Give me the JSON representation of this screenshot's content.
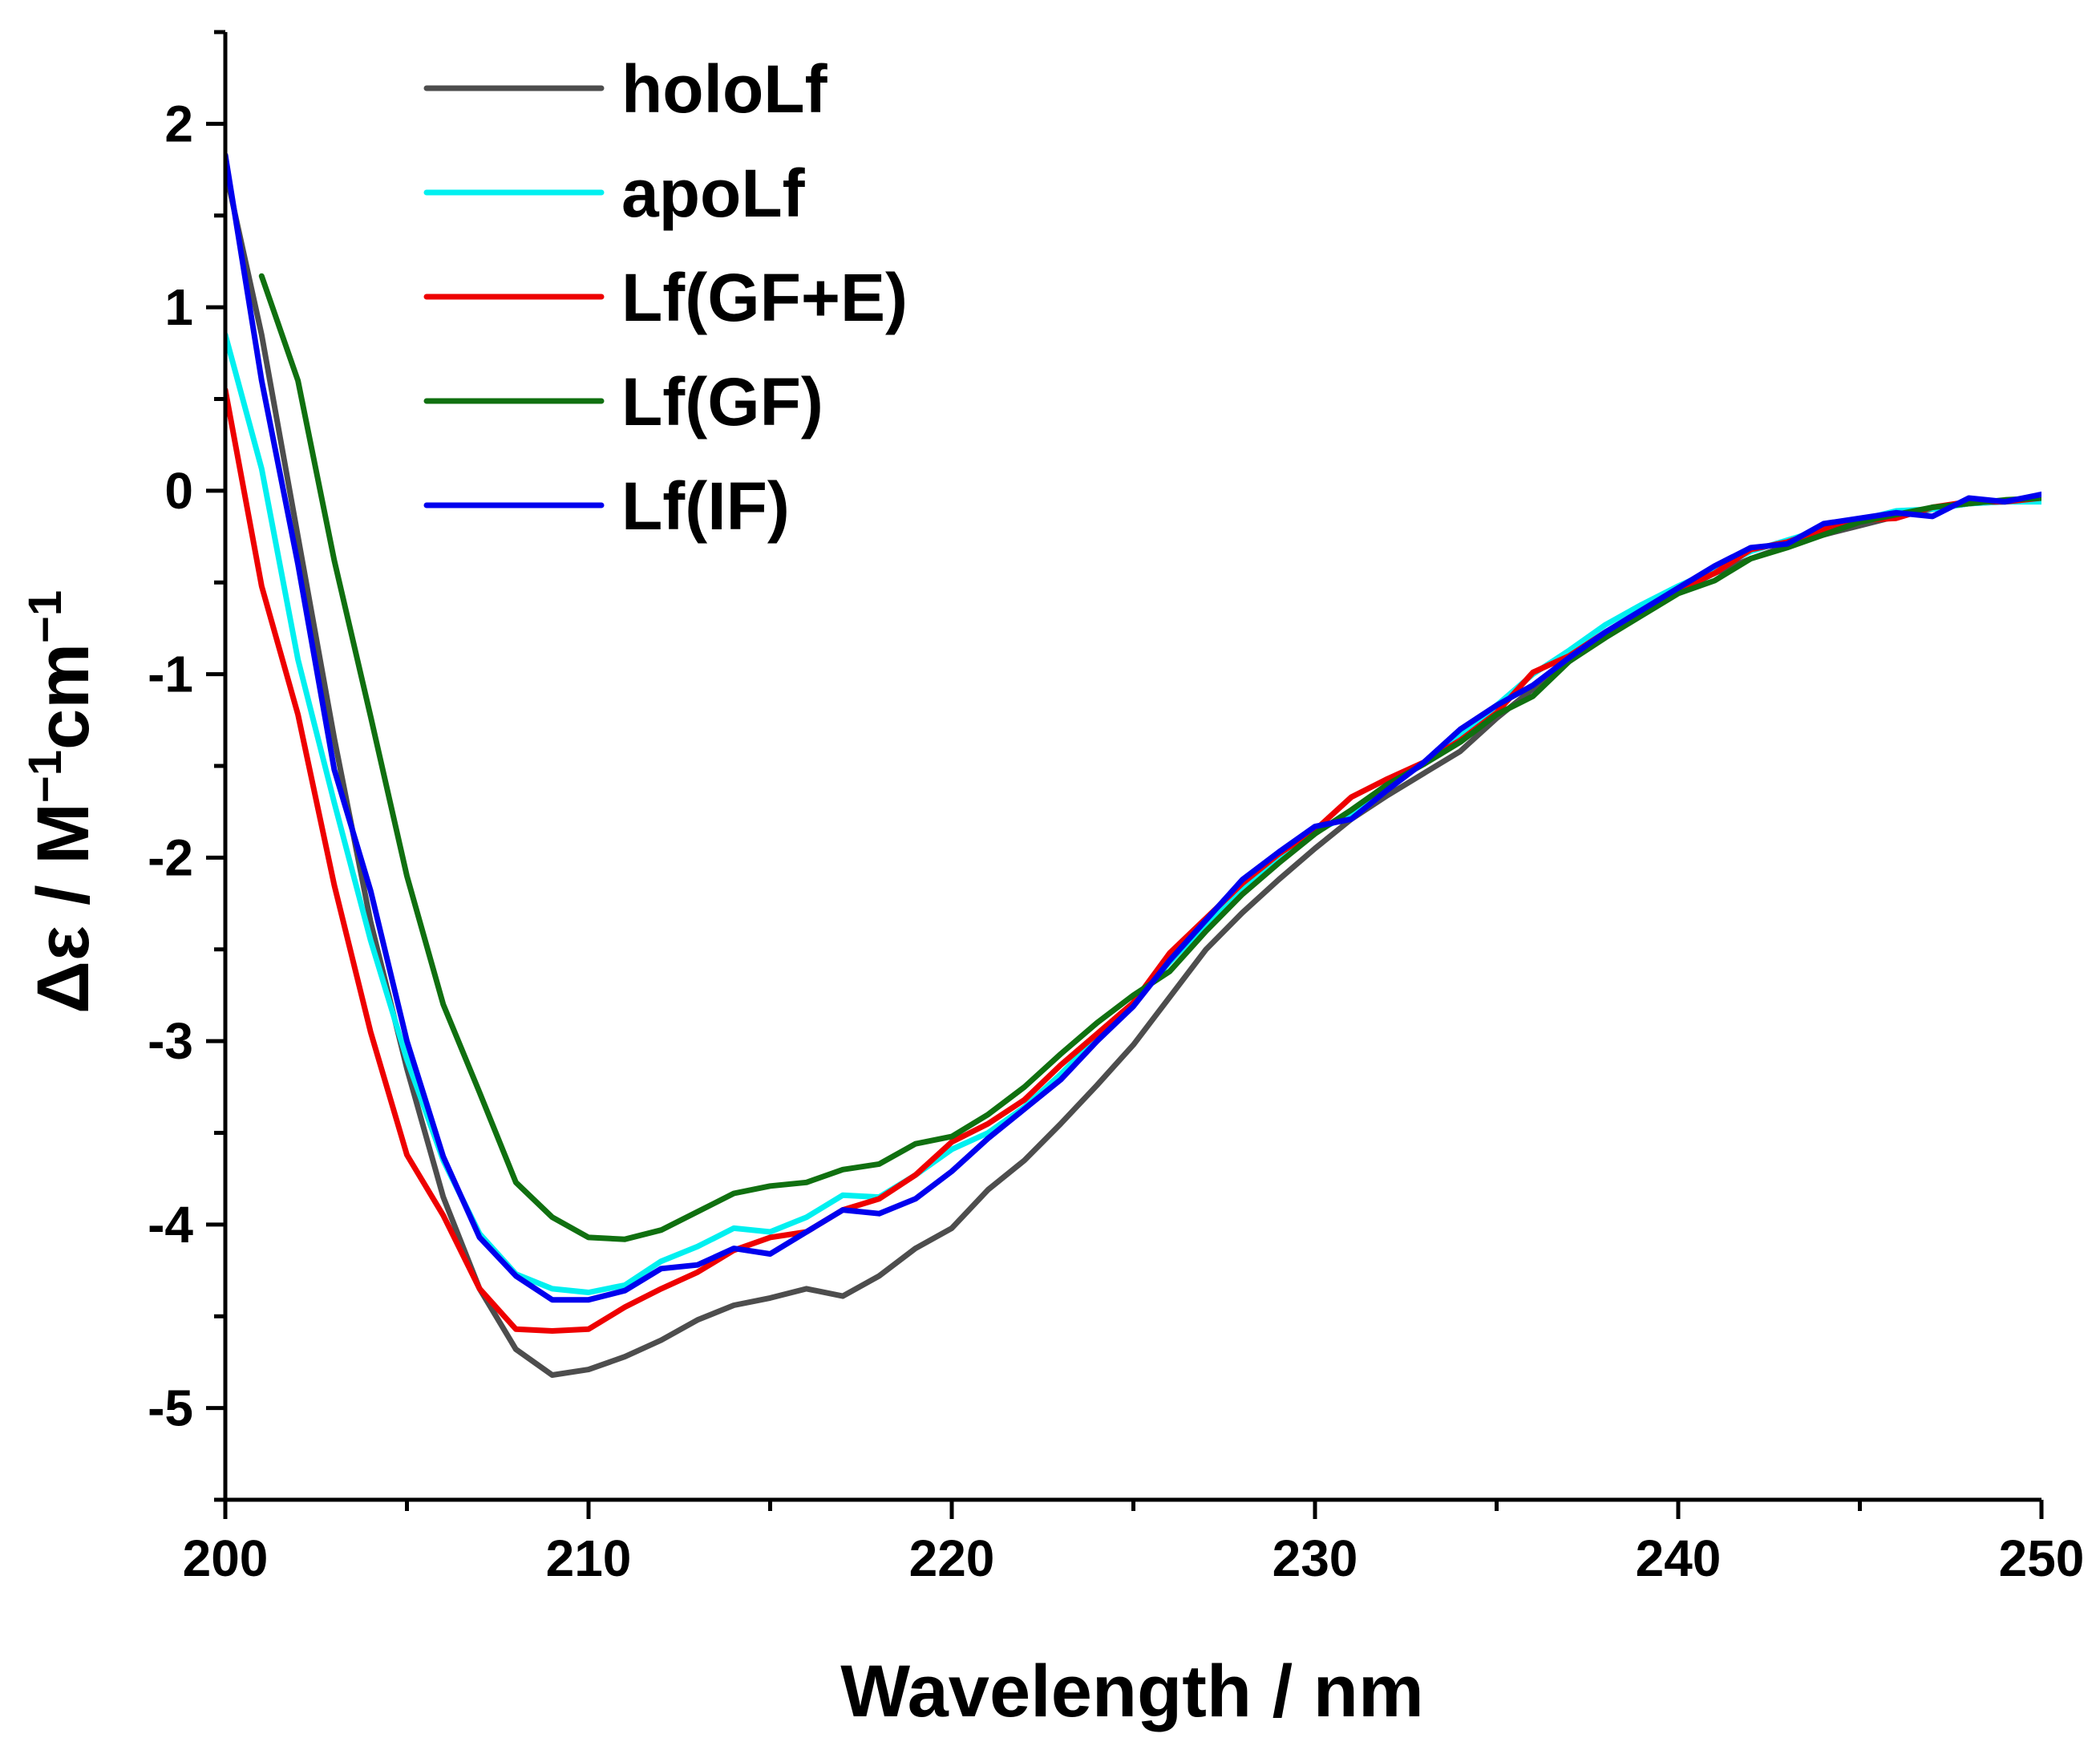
{
  "chart_data": {
    "type": "line",
    "title": "",
    "xlabel": "Wavelength / nm",
    "ylabel_prefix": "Δε / M",
    "ylabel_exp1": "−1",
    "ylabel_mid": "cm",
    "ylabel_exp2": "−1",
    "xlim": [
      200,
      250
    ],
    "ylim": [
      -5.5,
      2.5
    ],
    "xticks": [
      200,
      210,
      220,
      230,
      240,
      250
    ],
    "yticks": [
      -5,
      -4,
      -3,
      -2,
      -1,
      0,
      1,
      2
    ],
    "xtick_labels": [
      "200",
      "210",
      "220",
      "230",
      "240",
      "250"
    ],
    "ytick_labels": [
      "-5",
      "-4",
      "-3",
      "-2",
      "-1",
      "0",
      "1",
      "2"
    ],
    "legend_position": "top-left",
    "series": [
      {
        "name": "holoLf",
        "color": "#4d4d4d",
        "x": [
          200,
          201,
          202,
          203,
          204,
          205,
          206,
          207,
          208,
          209,
          210,
          211,
          212,
          213,
          214,
          215,
          216,
          217,
          218,
          219,
          220,
          221,
          222,
          223,
          224,
          225,
          226,
          227,
          228,
          229,
          230,
          231,
          232,
          233,
          234,
          235,
          236,
          237,
          238,
          239,
          240,
          241,
          242,
          243,
          244,
          245,
          246,
          247,
          248,
          249,
          250
        ],
        "y": [
          1.75,
          0.85,
          -0.25,
          -1.35,
          -2.35,
          -3.15,
          -3.85,
          -4.35,
          -4.68,
          -4.82,
          -4.79,
          -4.72,
          -4.63,
          -4.52,
          -4.44,
          -4.4,
          -4.35,
          -4.39,
          -4.28,
          -4.13,
          -4.02,
          -3.81,
          -3.65,
          -3.45,
          -3.24,
          -3.02,
          -2.76,
          -2.5,
          -2.3,
          -2.12,
          -1.95,
          -1.79,
          -1.66,
          -1.54,
          -1.42,
          -1.24,
          -1.08,
          -0.93,
          -0.79,
          -0.66,
          -0.55,
          -0.45,
          -0.37,
          -0.3,
          -0.24,
          -0.19,
          -0.14,
          -0.1,
          -0.07,
          -0.06,
          -0.04
        ]
      },
      {
        "name": "apoLf",
        "color": "#00f0f0",
        "x": [
          200,
          201,
          202,
          203,
          204,
          205,
          206,
          207,
          208,
          209,
          210,
          211,
          212,
          213,
          214,
          215,
          216,
          217,
          218,
          219,
          220,
          221,
          222,
          223,
          224,
          225,
          226,
          227,
          228,
          229,
          230,
          231,
          232,
          233,
          234,
          235,
          236,
          237,
          238,
          239,
          240,
          241,
          242,
          243,
          244,
          245,
          246,
          247,
          248,
          249,
          250
        ],
        "y": [
          0.85,
          0.12,
          -0.92,
          -1.7,
          -2.45,
          -3.1,
          -3.65,
          -4.05,
          -4.27,
          -4.35,
          -4.37,
          -4.33,
          -4.2,
          -4.12,
          -4.02,
          -4.04,
          -3.96,
          -3.84,
          -3.85,
          -3.73,
          -3.59,
          -3.5,
          -3.36,
          -3.18,
          -2.98,
          -2.79,
          -2.57,
          -2.36,
          -2.17,
          -2.0,
          -1.86,
          -1.76,
          -1.62,
          -1.48,
          -1.33,
          -1.17,
          -1.0,
          -0.87,
          -0.73,
          -0.62,
          -0.52,
          -0.43,
          -0.33,
          -0.27,
          -0.21,
          -0.16,
          -0.11,
          -0.1,
          -0.07,
          -0.06,
          -0.06
        ]
      },
      {
        "name": "Lf(GF+E)",
        "color": "#ee0000",
        "x": [
          200,
          201,
          202,
          203,
          204,
          205,
          206,
          207,
          208,
          209,
          210,
          211,
          212,
          213,
          214,
          215,
          216,
          217,
          218,
          219,
          220,
          221,
          222,
          223,
          224,
          225,
          226,
          227,
          228,
          229,
          230,
          231,
          232,
          233,
          234,
          235,
          236,
          237,
          238,
          239,
          240,
          241,
          242,
          243,
          244,
          245,
          246,
          247,
          248,
          249,
          250
        ],
        "y": [
          0.55,
          -0.52,
          -1.22,
          -2.15,
          -2.95,
          -3.62,
          -3.95,
          -4.35,
          -4.57,
          -4.58,
          -4.57,
          -4.45,
          -4.35,
          -4.26,
          -4.14,
          -4.07,
          -4.04,
          -3.92,
          -3.86,
          -3.73,
          -3.55,
          -3.45,
          -3.32,
          -3.13,
          -2.96,
          -2.79,
          -2.52,
          -2.33,
          -2.14,
          -1.98,
          -1.85,
          -1.67,
          -1.57,
          -1.48,
          -1.36,
          -1.21,
          -0.99,
          -0.9,
          -0.77,
          -0.66,
          -0.54,
          -0.45,
          -0.32,
          -0.28,
          -0.21,
          -0.16,
          -0.15,
          -0.09,
          -0.06,
          -0.06,
          -0.04
        ]
      },
      {
        "name": "Lf(GF)",
        "color": "#107010",
        "x": [
          201,
          202,
          203,
          204,
          205,
          206,
          207,
          208,
          209,
          210,
          211,
          212,
          213,
          214,
          215,
          216,
          217,
          218,
          219,
          220,
          221,
          222,
          223,
          224,
          225,
          226,
          227,
          228,
          229,
          230,
          231,
          232,
          233,
          234,
          235,
          236,
          237,
          238,
          239,
          240,
          241,
          242,
          243,
          244,
          245,
          246,
          247,
          248,
          249,
          250
        ],
        "y": [
          1.17,
          0.6,
          -0.38,
          -1.23,
          -2.1,
          -2.8,
          -3.28,
          -3.77,
          -3.96,
          -4.07,
          -4.08,
          -4.03,
          -3.93,
          -3.83,
          -3.79,
          -3.77,
          -3.7,
          -3.67,
          -3.56,
          -3.52,
          -3.4,
          -3.25,
          -3.07,
          -2.9,
          -2.75,
          -2.62,
          -2.4,
          -2.2,
          -2.03,
          -1.87,
          -1.74,
          -1.6,
          -1.49,
          -1.37,
          -1.22,
          -1.12,
          -0.93,
          -0.8,
          -0.68,
          -0.56,
          -0.49,
          -0.37,
          -0.31,
          -0.24,
          -0.17,
          -0.13,
          -0.09,
          -0.07,
          -0.05,
          -0.04
        ]
      },
      {
        "name": "Lf(IF)",
        "color": "#0000ee",
        "x": [
          200,
          201,
          202,
          203,
          204,
          205,
          206,
          207,
          208,
          209,
          210,
          211,
          212,
          213,
          214,
          215,
          216,
          217,
          218,
          219,
          220,
          221,
          222,
          223,
          224,
          225,
          226,
          227,
          228,
          229,
          230,
          231,
          232,
          233,
          234,
          235,
          236,
          237,
          238,
          239,
          240,
          241,
          242,
          243,
          244,
          245,
          246,
          247,
          248,
          249,
          250
        ],
        "y": [
          1.83,
          0.6,
          -0.4,
          -1.52,
          -2.18,
          -3.0,
          -3.63,
          -4.07,
          -4.28,
          -4.41,
          -4.41,
          -4.36,
          -4.24,
          -4.22,
          -4.13,
          -4.16,
          -4.04,
          -3.92,
          -3.94,
          -3.86,
          -3.71,
          -3.53,
          -3.37,
          -3.21,
          -3.0,
          -2.81,
          -2.56,
          -2.34,
          -2.12,
          -1.97,
          -1.83,
          -1.79,
          -1.63,
          -1.48,
          -1.3,
          -1.17,
          -1.06,
          -0.91,
          -0.77,
          -0.65,
          -0.53,
          -0.41,
          -0.31,
          -0.29,
          -0.18,
          -0.15,
          -0.12,
          -0.14,
          -0.04,
          -0.06,
          -0.02
        ]
      }
    ]
  }
}
